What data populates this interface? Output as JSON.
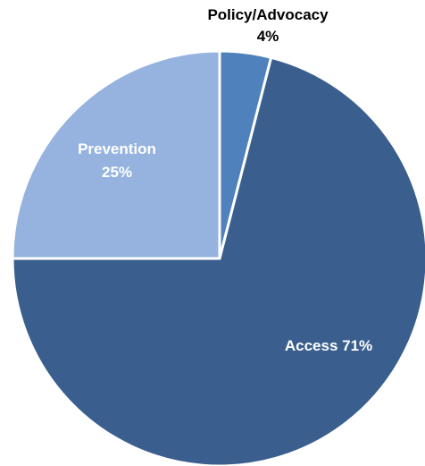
{
  "chart_data": {
    "type": "pie",
    "title": "",
    "slices": [
      {
        "name": "Policy/Advocacy",
        "value": 4,
        "label_lines": [
          "Policy/Advocacy",
          "4%"
        ],
        "color": "#4f81bd",
        "label_placement": "outside",
        "label_color": "#000000"
      },
      {
        "name": "Access",
        "value": 71,
        "label_lines": [
          "Access 71%"
        ],
        "color": "#3a5f8f",
        "label_placement": "inside",
        "label_color": "#ffffff"
      },
      {
        "name": "Prevention",
        "value": 25,
        "label_lines": [
          "Prevention",
          "25%"
        ],
        "color": "#95b3de",
        "label_placement": "inside",
        "label_color": "#ffffff"
      }
    ],
    "start_angle": "12 o'clock",
    "direction": "clockwise",
    "legend": "none"
  }
}
